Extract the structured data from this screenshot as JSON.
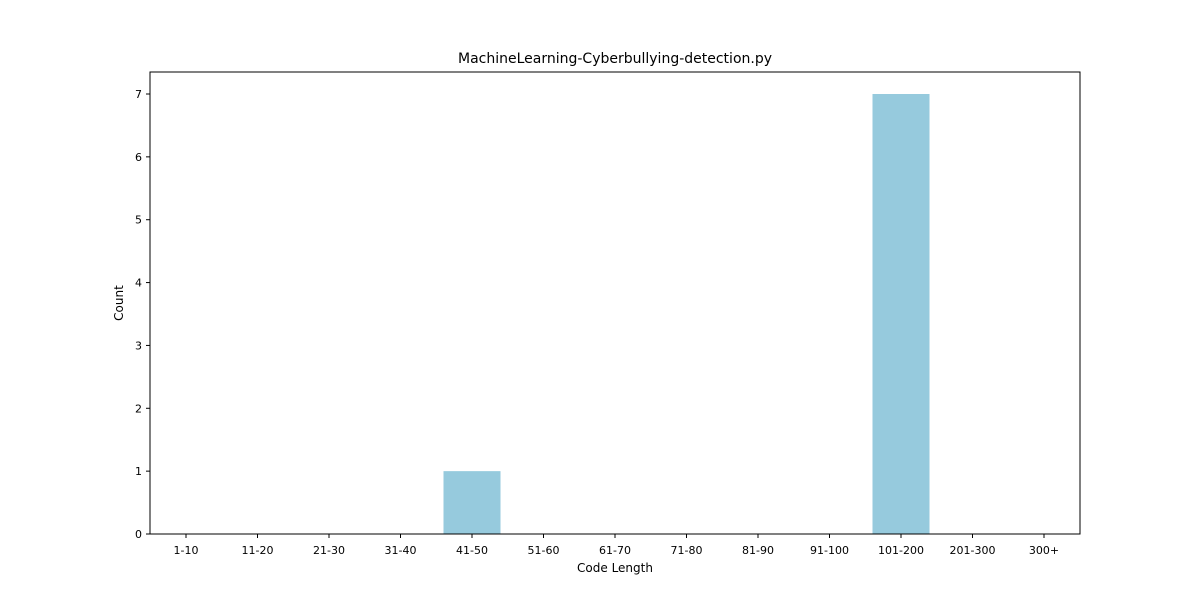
{
  "chart_data": {
    "type": "bar",
    "title": "MachineLearning-Cyberbullying-detection.py",
    "xlabel": "Code Length",
    "ylabel": "Count",
    "categories": [
      "1-10",
      "11-20",
      "21-30",
      "31-40",
      "41-50",
      "51-60",
      "61-70",
      "71-80",
      "81-90",
      "91-100",
      "101-200",
      "201-300",
      "300+"
    ],
    "values": [
      0,
      0,
      0,
      0,
      1,
      0,
      0,
      0,
      0,
      0,
      7,
      0,
      0
    ],
    "ylim": [
      0,
      7.35
    ],
    "yticks": [
      0,
      1,
      2,
      3,
      4,
      5,
      6,
      7
    ],
    "bar_color": "#96cadd",
    "grid": false,
    "legend": "none"
  }
}
